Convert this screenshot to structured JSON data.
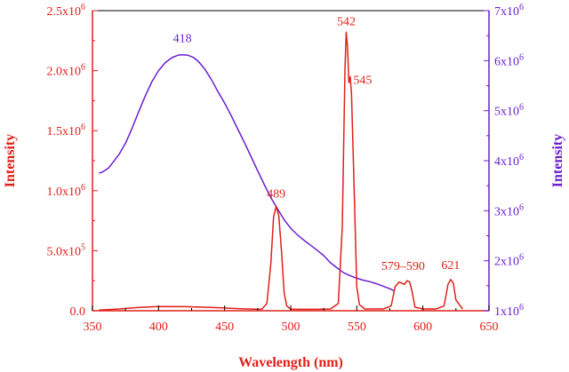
{
  "chart_data": {
    "type": "line",
    "xlabel": "Wavelength (nm)",
    "ylabel_left": "Intensity",
    "ylabel_right": "Intensity",
    "xlim": [
      350,
      650
    ],
    "ylim_left": [
      0,
      2500000
    ],
    "ylim_right": [
      1000000,
      7000000
    ],
    "colors": {
      "left_axis": "#e0201a",
      "right_axis": "#6a1fd0"
    },
    "x_ticks": [
      "350",
      "400",
      "450",
      "500",
      "550",
      "600",
      "650"
    ],
    "y_left_ticks": [
      {
        "value": 0,
        "mant": "0.0",
        "exp": ""
      },
      {
        "value": 500000,
        "mant": "5.0x10",
        "exp": "5"
      },
      {
        "value": 1000000,
        "mant": "1.0x10",
        "exp": "6"
      },
      {
        "value": 1500000,
        "mant": "1.5x10",
        "exp": "6"
      },
      {
        "value": 2000000,
        "mant": "2.0x10",
        "exp": "6"
      },
      {
        "value": 2500000,
        "mant": "2.5x10",
        "exp": "6"
      }
    ],
    "y_right_ticks": [
      {
        "value": 1000000,
        "mant": "1x10",
        "exp": "6"
      },
      {
        "value": 2000000,
        "mant": "2x10",
        "exp": "6"
      },
      {
        "value": 3000000,
        "mant": "3x10",
        "exp": "6"
      },
      {
        "value": 4000000,
        "mant": "4x10",
        "exp": "6"
      },
      {
        "value": 5000000,
        "mant": "5x10",
        "exp": "6"
      },
      {
        "value": 6000000,
        "mant": "6x10",
        "exp": "6"
      },
      {
        "value": 7000000,
        "mant": "7x10",
        "exp": "6"
      }
    ],
    "series": [
      {
        "axis": "right",
        "color": "#6a1fd0",
        "x": [
          355,
          358,
          362,
          365,
          370,
          375,
          380,
          385,
          390,
          395,
          400,
          405,
          410,
          415,
          418,
          422,
          426,
          430,
          435,
          440,
          445,
          450,
          455,
          460,
          465,
          470,
          475,
          480,
          485,
          490,
          495,
          500,
          505,
          510,
          515,
          520,
          525,
          530,
          535,
          540,
          545,
          550,
          555,
          560,
          565,
          570,
          575,
          578
        ],
        "y": [
          3750000,
          3780000,
          3850000,
          3950000,
          4120000,
          4350000,
          4650000,
          4980000,
          5300000,
          5580000,
          5800000,
          5960000,
          6060000,
          6110000,
          6120000,
          6110000,
          6070000,
          5990000,
          5830000,
          5620000,
          5380000,
          5150000,
          4900000,
          4630000,
          4360000,
          4080000,
          3800000,
          3520000,
          3260000,
          3040000,
          2820000,
          2650000,
          2520000,
          2410000,
          2310000,
          2210000,
          2100000,
          1960000,
          1860000,
          1760000,
          1700000,
          1650000,
          1610000,
          1580000,
          1540000,
          1490000,
          1440000,
          1400000
        ]
      },
      {
        "axis": "left",
        "color": "#e0201a",
        "x": [
          355,
          370,
          385,
          400,
          420,
          440,
          460,
          470,
          478,
          482,
          485,
          487,
          489,
          491,
          493,
          495,
          497,
          500,
          505,
          520,
          530,
          536,
          539,
          541,
          542,
          543,
          544,
          545,
          546,
          548,
          550,
          552,
          556,
          570,
          576,
          579,
          582,
          584,
          586,
          588,
          590,
          592,
          594,
          600,
          610,
          616,
          619,
          621,
          623,
          625,
          630
        ],
        "y": [
          5000,
          15000,
          28000,
          35000,
          34000,
          28000,
          18000,
          14000,
          12000,
          60000,
          400000,
          780000,
          870000,
          790000,
          500000,
          150000,
          40000,
          14000,
          12000,
          12000,
          15000,
          60000,
          700000,
          2000000,
          2320000,
          2200000,
          1900000,
          1950000,
          1800000,
          1000000,
          200000,
          50000,
          15000,
          15000,
          40000,
          200000,
          240000,
          230000,
          220000,
          250000,
          240000,
          150000,
          30000,
          15000,
          15000,
          40000,
          220000,
          260000,
          230000,
          90000,
          15000
        ]
      }
    ],
    "annotations": [
      {
        "text": "418",
        "x": 418,
        "axis": "right",
        "y": 6120000,
        "color": "#6a1fd0"
      },
      {
        "text": "489",
        "x": 489,
        "axis": "left",
        "y": 870000,
        "color": "#e0201a"
      },
      {
        "text": "542",
        "x": 542,
        "axis": "left",
        "y": 2320000,
        "color": "#e0201a"
      },
      {
        "text": "545",
        "x": 545,
        "axis": "left",
        "y": 1950000,
        "color": "#e0201a"
      },
      {
        "text": "579–590",
        "x": 585,
        "axis": "left",
        "y": 250000,
        "color": "#e0201a"
      },
      {
        "text": "621",
        "x": 621,
        "axis": "left",
        "y": 260000,
        "color": "#e0201a"
      }
    ]
  }
}
